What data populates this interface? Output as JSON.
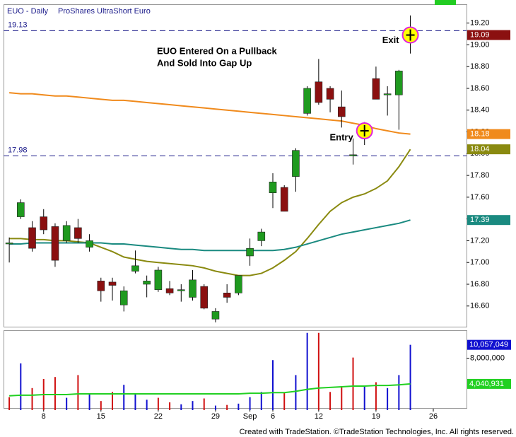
{
  "chart_data": {
    "type": "candlestick",
    "title": "EUO - Daily",
    "subtitle": "ProShares UltraShort Euro",
    "annotations": [
      "EUO Entered On a Pullback",
      "And Sold Into Gap Up"
    ],
    "markers": [
      {
        "label": "Entry",
        "x": 31
      },
      {
        "label": "Exit",
        "x": 35
      }
    ],
    "up_color": "#1f9a1f",
    "down_color": "#8b1010",
    "open": [
      17.18,
      17.42,
      17.32,
      17.42,
      17.33,
      17.2,
      17.32,
      17.14,
      16.83,
      16.82,
      16.61,
      16.92,
      16.8,
      16.75,
      16.76,
      16.74,
      16.68,
      16.78,
      16.48,
      16.72,
      16.72,
      17.06,
      17.2,
      17.64,
      17.69,
      17.79,
      18.37,
      18.66,
      18.6,
      18.43,
      17.98,
      18.17,
      18.69,
      18.54,
      18.54,
      19.12
    ],
    "high": [
      17.23,
      17.58,
      17.38,
      17.49,
      17.36,
      17.38,
      17.4,
      17.26,
      16.86,
      16.86,
      16.78,
      17.11,
      16.88,
      16.96,
      16.83,
      16.8,
      16.93,
      16.8,
      16.58,
      16.8,
      16.88,
      17.22,
      17.31,
      17.82,
      17.71,
      18.05,
      18.62,
      18.87,
      18.62,
      18.58,
      18.14,
      18.29,
      18.8,
      18.62,
      18.77,
      19.27
    ],
    "low": [
      17.0,
      17.4,
      17.1,
      17.26,
      16.96,
      17.18,
      17.18,
      17.1,
      16.64,
      16.65,
      16.55,
      16.9,
      16.68,
      16.73,
      16.7,
      16.64,
      16.65,
      16.57,
      16.45,
      16.63,
      16.7,
      16.97,
      17.15,
      17.5,
      17.47,
      17.65,
      18.35,
      18.45,
      18.38,
      18.24,
      17.9,
      18.08,
      18.5,
      18.35,
      18.22,
      18.92
    ],
    "close": [
      17.18,
      17.55,
      17.13,
      17.3,
      17.02,
      17.34,
      17.22,
      17.2,
      16.74,
      16.79,
      16.74,
      16.97,
      16.83,
      16.93,
      16.72,
      16.75,
      16.84,
      16.58,
      16.55,
      16.68,
      16.88,
      17.13,
      17.28,
      17.74,
      17.47,
      18.03,
      18.6,
      18.47,
      18.5,
      18.34,
      17.99,
      18.21,
      18.5,
      18.55,
      18.76,
      19.09
    ],
    "close_label_color": "#8b1010",
    "moving_averages": [
      {
        "color": "#f08a1c",
        "values": [
          18.56,
          18.55,
          18.55,
          18.54,
          18.53,
          18.53,
          18.52,
          18.51,
          18.5,
          18.49,
          18.49,
          18.48,
          18.47,
          18.46,
          18.45,
          18.44,
          18.43,
          18.42,
          18.41,
          18.4,
          18.39,
          18.38,
          18.37,
          18.36,
          18.35,
          18.34,
          18.33,
          18.32,
          18.31,
          18.3,
          18.28,
          18.26,
          18.23,
          18.21,
          18.19,
          18.18
        ]
      },
      {
        "color": "#8a8a10",
        "values": [
          17.22,
          17.22,
          17.21,
          17.21,
          17.2,
          17.2,
          17.19,
          17.18,
          17.14,
          17.1,
          17.05,
          17.03,
          17.01,
          17.0,
          16.99,
          16.98,
          16.97,
          16.95,
          16.92,
          16.9,
          16.88,
          16.88,
          16.9,
          16.95,
          17.02,
          17.1,
          17.22,
          17.35,
          17.47,
          17.55,
          17.6,
          17.63,
          17.68,
          17.75,
          17.88,
          18.04
        ]
      },
      {
        "color": "#1a8a80",
        "values": [
          17.17,
          17.17,
          17.18,
          17.18,
          17.18,
          17.18,
          17.18,
          17.18,
          17.18,
          17.17,
          17.17,
          17.16,
          17.15,
          17.14,
          17.13,
          17.12,
          17.12,
          17.11,
          17.11,
          17.11,
          17.11,
          17.11,
          17.11,
          17.11,
          17.12,
          17.14,
          17.17,
          17.2,
          17.23,
          17.26,
          17.28,
          17.3,
          17.32,
          17.34,
          17.36,
          17.39
        ]
      }
    ],
    "hlines": [
      19.13,
      17.98
    ],
    "hline_color": "#1a1a8a",
    "ylim": [
      16.41,
      19.36
    ],
    "yticks": [
      {
        "value": 16.6,
        "label": "16.60"
      },
      {
        "value": 16.8,
        "label": "16.80"
      },
      {
        "value": 17,
        "label": "17.00"
      },
      {
        "value": 17.2,
        "label": "17.20"
      },
      {
        "value": 17.4,
        "label": "17.40"
      },
      {
        "value": 17.6,
        "label": "17.60"
      },
      {
        "value": 17.8,
        "label": "17.80"
      },
      {
        "value": 18,
        "label": "18.00"
      },
      {
        "value": 18.2,
        "label": "18.20"
      },
      {
        "value": 18.4,
        "label": "18.40"
      },
      {
        "value": 18.6,
        "label": "18.60"
      },
      {
        "value": 18.8,
        "label": "18.80"
      },
      {
        "value": 19,
        "label": "19.00"
      },
      {
        "value": 19.2,
        "label": "19.20"
      }
    ],
    "xlim": [
      -0.5,
      39.9
    ],
    "xticks": [
      {
        "value": 3,
        "label": "8"
      },
      {
        "value": 8,
        "label": "15"
      },
      {
        "value": 13,
        "label": "22"
      },
      {
        "value": 18,
        "label": "29"
      },
      {
        "value": 21,
        "label": "Sep"
      },
      {
        "value": 23,
        "label": "6"
      },
      {
        "value": 27,
        "label": "12"
      },
      {
        "value": 32,
        "label": "19"
      },
      {
        "value": 37,
        "label": "26"
      }
    ],
    "volume": {
      "values": [
        2000000,
        7200000,
        3400000,
        4800000,
        5100000,
        1900000,
        5400000,
        2400000,
        1400000,
        2800000,
        3900000,
        2600000,
        1600000,
        1900000,
        1200000,
        900000,
        1400000,
        1800000,
        700000,
        800000,
        1000000,
        2000000,
        2800000,
        7700000,
        2700000,
        5400000,
        11900000,
        11900000,
        2800000,
        3700000,
        8100000,
        3800000,
        4300000,
        3400000,
        5400000,
        10057049
      ],
      "value_labels": [
        null,
        null,
        null,
        null,
        null,
        null,
        null,
        null,
        null,
        null,
        null,
        null,
        null,
        null,
        null,
        null,
        null,
        null,
        null,
        null,
        null,
        null,
        null,
        null,
        null,
        null,
        null,
        null,
        null,
        null,
        null,
        null,
        null,
        null,
        null,
        "10,057,049"
      ],
      "colors": [
        "#d01010",
        "#1010d0",
        "#d01010",
        "#d01010",
        "#d01010",
        "#1010d0",
        "#d01010",
        "#1010d0",
        "#d01010",
        "#d01010",
        "#1010d0",
        "#1010d0",
        "#1010d0",
        "#d01010",
        "#d01010",
        "#1010d0",
        "#1010d0",
        "#d01010",
        "#1010d0",
        "#d01010",
        "#1010d0",
        "#1010d0",
        "#1010d0",
        "#1010d0",
        "#d01010",
        "#1010d0",
        "#1010d0",
        "#d01010",
        "#d01010",
        "#d01010",
        "#d01010",
        "#1010d0",
        "#d01010",
        "#1010d0",
        "#1010d0",
        "#1010d0"
      ],
      "label_color": "#1010d0",
      "average": {
        "color": "#22d022",
        "values": [
          2200000,
          2300000,
          2300000,
          2400000,
          2400000,
          2400000,
          2500000,
          2500000,
          2500000,
          2500000,
          2500000,
          2500000,
          2500000,
          2500000,
          2500000,
          2500000,
          2500000,
          2500000,
          2500000,
          2500000,
          2500000,
          2600000,
          2600000,
          2700000,
          2700000,
          2900000,
          3200000,
          3400000,
          3500000,
          3600000,
          3700000,
          3700000,
          3800000,
          3800000,
          3900000,
          4040931
        ],
        "value_labels": [
          null,
          null,
          null,
          null,
          null,
          null,
          null,
          null,
          null,
          null,
          null,
          null,
          null,
          null,
          null,
          null,
          null,
          null,
          null,
          null,
          null,
          null,
          null,
          null,
          null,
          null,
          null,
          null,
          null,
          null,
          null,
          null,
          null,
          null,
          null,
          "4,040,931"
        ]
      },
      "ylim": [
        0,
        12200000
      ],
      "yticks": [
        {
          "value": 8000000,
          "label": "8,000,000"
        }
      ]
    },
    "footer": "Created with TradeStation. ©TradeStation Technologies, Inc. All rights reserved."
  }
}
